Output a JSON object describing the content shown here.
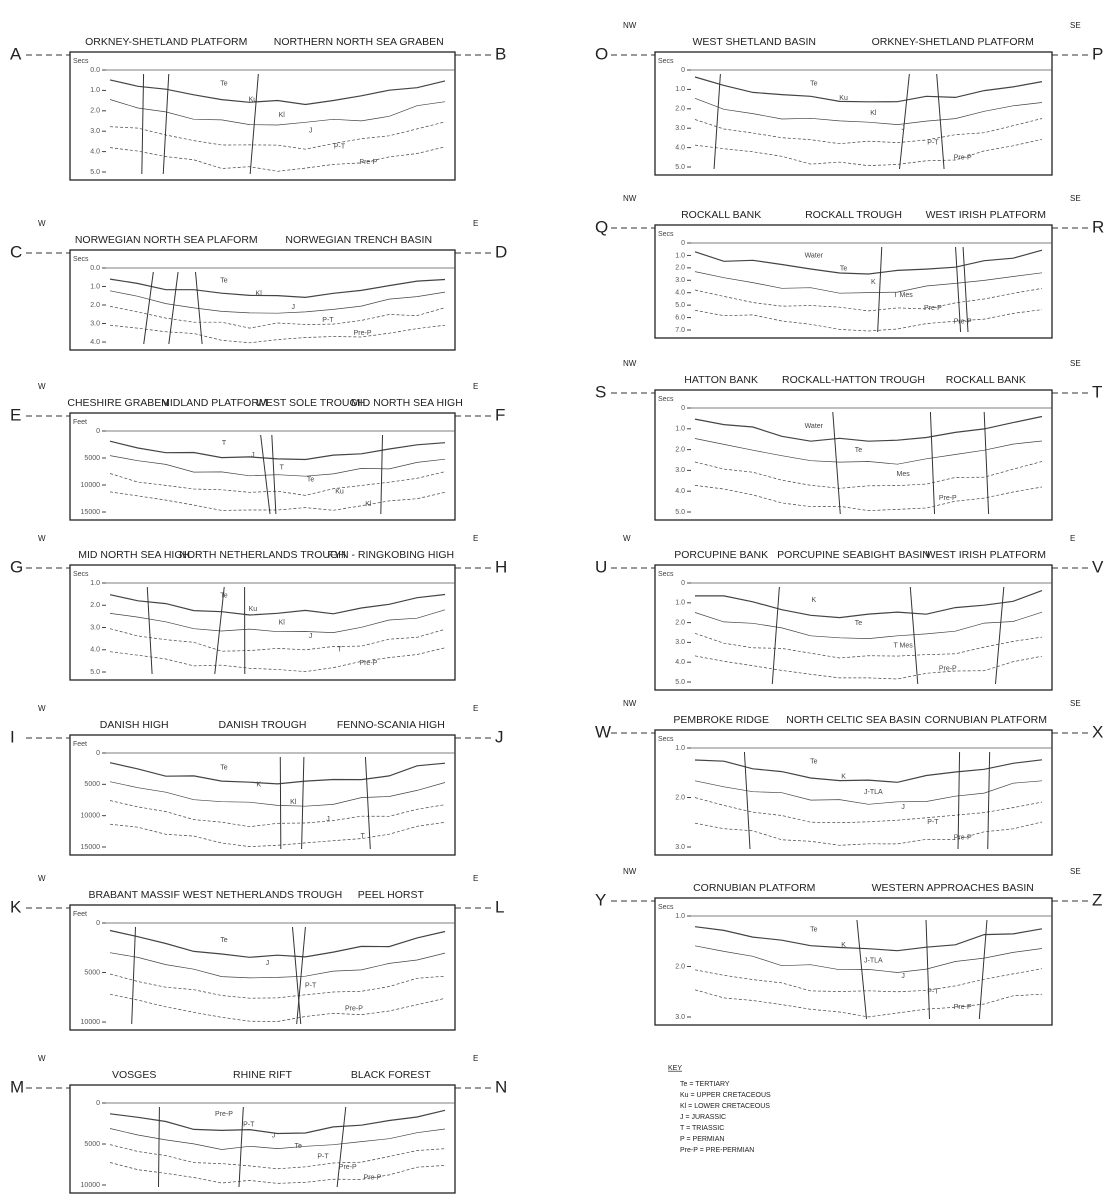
{
  "panels": [
    {
      "start": "A",
      "end": "B",
      "regions": [
        "ORKNEY-SHETLAND PLATFORM",
        "NORTHERN NORTH SEA GRABEN"
      ],
      "axis_unit": "Secs",
      "ticks": [
        "0.0",
        "1.0",
        "2.0",
        "3.0",
        "4.0",
        "5.0"
      ],
      "units": [
        "Te",
        "Ku",
        "Kl",
        "J",
        "P-T",
        "Pre-P"
      ]
    },
    {
      "start": "C",
      "end": "D",
      "left_dir": "W",
      "right_dir": "E",
      "regions": [
        "NORWEGIAN NORTH SEA PLAFORM",
        "NORWEGIAN TRENCH BASIN"
      ],
      "axis_unit": "Secs",
      "ticks": [
        "0.0",
        "1.0",
        "2.0",
        "3.0",
        "4.0"
      ],
      "units": [
        "Te",
        "Kl",
        "J",
        "P-T",
        "Pre-P"
      ]
    },
    {
      "start": "E",
      "end": "F",
      "left_dir": "W",
      "right_dir": "E",
      "regions": [
        "CHESHIRE GRABEN",
        "MIDLAND PLATFORM",
        "WEST SOLE TROUGH",
        "MID NORTH SEA HIGH"
      ],
      "axis_unit": "Feet",
      "ticks": [
        "0",
        "5000",
        "10000",
        "15000"
      ],
      "units": [
        "T",
        "J",
        "T",
        "Te",
        "Ku",
        "Kl"
      ]
    },
    {
      "start": "G",
      "end": "H",
      "left_dir": "W",
      "right_dir": "E",
      "regions": [
        "MID NORTH SEA HIGH",
        "NORTH NETHERLANDS TROUGH",
        "FYN - RINGKOBING HIGH"
      ],
      "axis_unit": "Secs",
      "ticks": [
        "1.0",
        "2.0",
        "3.0",
        "4.0",
        "5.0"
      ],
      "units": [
        "Te",
        "Ku",
        "Kl",
        "J",
        "T",
        "Pre-P"
      ]
    },
    {
      "start": "I",
      "end": "J",
      "left_dir": "W",
      "right_dir": "E",
      "regions": [
        "DANISH HIGH",
        "DANISH TROUGH",
        "FENNO-SCANIA HIGH"
      ],
      "axis_unit": "Feet",
      "ticks": [
        "0",
        "5000",
        "10000",
        "15000"
      ],
      "units": [
        "Te",
        "K",
        "Kl",
        "J",
        "T"
      ]
    },
    {
      "start": "K",
      "end": "L",
      "left_dir": "W",
      "right_dir": "E",
      "regions": [
        "BRABANT MASSIF",
        "WEST NETHERLANDS TROUGH",
        "PEEL HORST"
      ],
      "axis_unit": "Feet",
      "ticks": [
        "0",
        "5000",
        "10000"
      ],
      "units": [
        "Te",
        "J",
        "P-T",
        "Pre-P"
      ]
    },
    {
      "start": "M",
      "end": "N",
      "left_dir": "W",
      "right_dir": "E",
      "regions": [
        "VOSGES",
        "RHINE RIFT",
        "BLACK FOREST"
      ],
      "ticks": [
        "0",
        "5000",
        "10000"
      ],
      "units": [
        "Pre-P",
        "P-T",
        "J",
        "Te",
        "P-T",
        "Pre-P",
        "Pre-P"
      ]
    },
    {
      "start": "O",
      "end": "P",
      "left_dir": "NW",
      "right_dir": "SE",
      "regions": [
        "WEST SHETLAND BASIN",
        "ORKNEY-SHETLAND PLATFORM"
      ],
      "axis_unit": "Secs",
      "ticks": [
        "0",
        "1.0",
        "2.0",
        "3.0",
        "4.0",
        "5.0"
      ],
      "units": [
        "Te",
        "Ku",
        "Kl",
        "J",
        "P-T",
        "Pre-P"
      ]
    },
    {
      "start": "Q",
      "end": "R",
      "left_dir": "NW",
      "right_dir": "SE",
      "regions": [
        "ROCKALL BANK",
        "ROCKALL TROUGH",
        "WEST IRISH PLATFORM"
      ],
      "axis_unit": "Secs",
      "ticks": [
        "0",
        "1.0",
        "2.0",
        "3.0",
        "4.0",
        "5.0",
        "6.0",
        "7.0"
      ],
      "units": [
        "Water",
        "Te",
        "K",
        "T Mes",
        "Pre-P",
        "Pre-P"
      ]
    },
    {
      "start": "S",
      "end": "T",
      "left_dir": "NW",
      "right_dir": "SE",
      "regions": [
        "HATTON BANK",
        "ROCKALL-HATTON TROUGH",
        "ROCKALL BANK"
      ],
      "axis_unit": "Secs",
      "ticks": [
        "0",
        "1.0",
        "2.0",
        "3.0",
        "4.0",
        "5.0"
      ],
      "units": [
        "Water",
        "Te",
        "Mes",
        "Pre-P"
      ]
    },
    {
      "start": "U",
      "end": "V",
      "left_dir": "W",
      "right_dir": "E",
      "regions": [
        "PORCUPINE BANK",
        "PORCUPINE SEABIGHT BASIN",
        "WEST IRISH PLATFORM"
      ],
      "axis_unit": "Secs",
      "ticks": [
        "0",
        "1.0",
        "2.0",
        "3.0",
        "4.0",
        "5.0"
      ],
      "units": [
        "K",
        "Te",
        "T Mes",
        "Pre-P"
      ]
    },
    {
      "start": "W",
      "end": "X",
      "left_dir": "NW",
      "right_dir": "SE",
      "regions": [
        "PEMBROKE RIDGE",
        "NORTH CELTIC SEA BASIN",
        "CORNUBIAN PLATFORM"
      ],
      "axis_unit": "Secs",
      "ticks": [
        "1.0",
        "2.0",
        "3.0"
      ],
      "units": [
        "Te",
        "K",
        "J-TLA",
        "J",
        "P-T",
        "Pre-P"
      ]
    },
    {
      "start": "Y",
      "end": "Z",
      "left_dir": "NW",
      "right_dir": "SE",
      "regions": [
        "CORNUBIAN PLATFORM",
        "WESTERN APPROACHES BASIN"
      ],
      "axis_unit": "Secs",
      "ticks": [
        "1.0",
        "2.0",
        "3.0"
      ],
      "units": [
        "Te",
        "K",
        "J-TLA",
        "J",
        "P-T",
        "Pre-P"
      ]
    }
  ],
  "key": {
    "title": "KEY",
    "items": [
      "Te = TERTIARY",
      "Ku = UPPER CRETACEOUS",
      "Kl = LOWER CRETACEOUS",
      "J = JURASSIC",
      "T = TRIASSIC",
      "P = PERMIAN",
      "Pre-P = PRE-PERMIAN"
    ]
  }
}
